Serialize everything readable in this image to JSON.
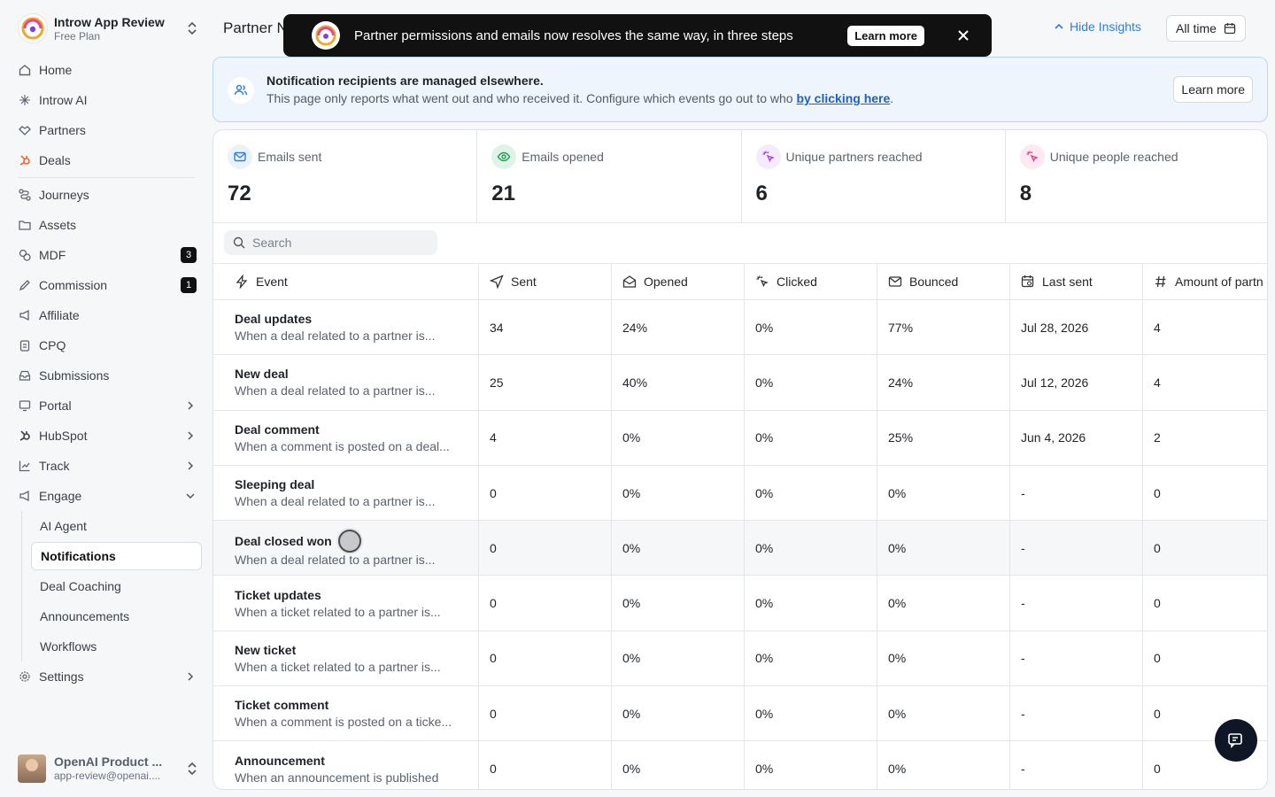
{
  "workspace": {
    "name": "Introw App Review",
    "plan": "Free Plan"
  },
  "nav": {
    "home": "Home",
    "introw_ai": "Introw AI",
    "partners": "Partners",
    "deals": "Deals",
    "journeys": "Journeys",
    "assets": "Assets",
    "mdf": "MDF",
    "mdf_badge": "3",
    "commission": "Commission",
    "commission_badge": "1",
    "affiliate": "Affiliate",
    "cpq": "CPQ",
    "submissions": "Submissions",
    "portal": "Portal",
    "hubspot": "HubSpot",
    "track": "Track",
    "engage": "Engage",
    "engage_sub": {
      "ai_agent": "AI Agent",
      "notifications": "Notifications",
      "deal_coaching": "Deal Coaching",
      "announcements": "Announcements",
      "workflows": "Workflows"
    },
    "settings": "Settings"
  },
  "user": {
    "name": "OpenAI Product ...",
    "email": "app-review@openai...."
  },
  "header": {
    "title": "Partner N",
    "hide_insights": "Hide Insights",
    "date_filter": "All time"
  },
  "toast": {
    "message": "Partner permissions and emails now resolves the same way, in three steps",
    "button": "Learn more"
  },
  "banner": {
    "title": "Notification recipients are managed elsewhere.",
    "text_before": "This page only reports what went out and who received it. Configure which events go out to who ",
    "link": "by clicking here",
    "text_after": ".",
    "button": "Learn more"
  },
  "stats": [
    {
      "label": "Emails sent",
      "value": "72"
    },
    {
      "label": "Emails opened",
      "value": "21"
    },
    {
      "label": "Unique partners reached",
      "value": "6"
    },
    {
      "label": "Unique people reached",
      "value": "8"
    }
  ],
  "search": {
    "placeholder": "Search"
  },
  "table": {
    "columns": [
      "Event",
      "Sent",
      "Opened",
      "Clicked",
      "Bounced",
      "Last sent",
      "Amount of partn"
    ],
    "rows": [
      {
        "title": "Deal updates",
        "desc": "When a deal related to a partner is...",
        "sent": "34",
        "opened": "24%",
        "clicked": "0%",
        "bounced": "77%",
        "last": "Jul 28, 2026",
        "amount": "4"
      },
      {
        "title": "New deal",
        "desc": "When a deal related to a partner is...",
        "sent": "25",
        "opened": "40%",
        "clicked": "0%",
        "bounced": "24%",
        "last": "Jul 12, 2026",
        "amount": "4"
      },
      {
        "title": "Deal comment",
        "desc": "When a comment is posted on a deal...",
        "sent": "4",
        "opened": "0%",
        "clicked": "0%",
        "bounced": "25%",
        "last": "Jun 4, 2026",
        "amount": "2"
      },
      {
        "title": "Sleeping deal",
        "desc": "When a deal related to a partner is...",
        "sent": "0",
        "opened": "0%",
        "clicked": "0%",
        "bounced": "0%",
        "last": "-",
        "amount": "0"
      },
      {
        "title": "Deal closed won",
        "desc": "When a deal related to a partner is...",
        "sent": "0",
        "opened": "0%",
        "clicked": "0%",
        "bounced": "0%",
        "last": "-",
        "amount": "0"
      },
      {
        "title": "Ticket updates",
        "desc": "When a ticket related to a partner is...",
        "sent": "0",
        "opened": "0%",
        "clicked": "0%",
        "bounced": "0%",
        "last": "-",
        "amount": "0"
      },
      {
        "title": "New ticket",
        "desc": "When a ticket related to a partner is...",
        "sent": "0",
        "opened": "0%",
        "clicked": "0%",
        "bounced": "0%",
        "last": "-",
        "amount": "0"
      },
      {
        "title": "Ticket comment",
        "desc": "When a comment is posted on a ticke...",
        "sent": "0",
        "opened": "0%",
        "clicked": "0%",
        "bounced": "0%",
        "last": "-",
        "amount": "0"
      },
      {
        "title": "Announcement",
        "desc": "When an announcement is published",
        "sent": "0",
        "opened": "0%",
        "clicked": "0%",
        "bounced": "0%",
        "last": "-",
        "amount": "0"
      }
    ]
  },
  "colors": {
    "accent": "#2f7de1",
    "link": "#1b5fc9",
    "banner_bg": "#eef5fd",
    "dark": "#111111"
  }
}
